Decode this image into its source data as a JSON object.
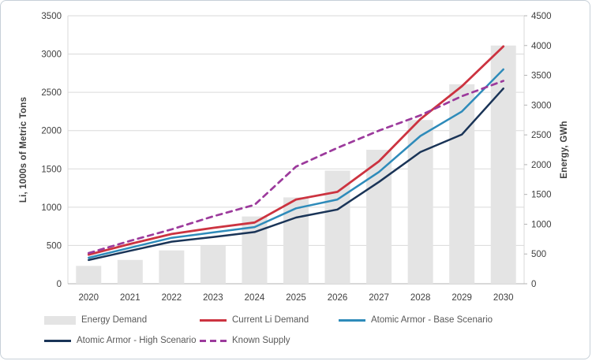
{
  "figure": {
    "background": "#ffffff",
    "border_color": "#c7d0d8",
    "grid_color": "#dadada",
    "axis_line_color": "#b3b3b3",
    "tick_text_color": "#404040",
    "legend_text_color": "#595959"
  },
  "chart_data": {
    "type": "combo-bar-line",
    "title": "",
    "categories": [
      "2020",
      "2021",
      "2022",
      "2023",
      "2024",
      "2025",
      "2026",
      "2027",
      "2028",
      "2029",
      "2030"
    ],
    "bar_series": {
      "name": "Energy Demand",
      "axis": "right",
      "color": "#e4e4e4",
      "values": [
        300,
        400,
        560,
        640,
        1130,
        1450,
        1900,
        2250,
        2750,
        3350,
        4000
      ]
    },
    "series": [
      {
        "name": "Current Li Demand",
        "axis": "left",
        "color": "#cc3340",
        "dashed": false,
        "width": 2.8,
        "values": [
          380,
          520,
          650,
          730,
          800,
          1100,
          1200,
          1600,
          2150,
          2580,
          3100
        ]
      },
      {
        "name": "Atomic Armor - Base Scenario",
        "axis": "left",
        "color": "#2e8bba",
        "dashed": false,
        "width": 2.5,
        "values": [
          340,
          470,
          600,
          670,
          740,
          985,
          1100,
          1460,
          1930,
          2250,
          2800
        ]
      },
      {
        "name": "Atomic Armor - High Scenario",
        "axis": "left",
        "color": "#1a3457",
        "dashed": false,
        "width": 2.5,
        "values": [
          310,
          430,
          550,
          610,
          675,
          865,
          970,
          1330,
          1720,
          1950,
          2550
        ]
      },
      {
        "name": "Known Supply",
        "axis": "left",
        "color": "#9c3a9c",
        "dashed": true,
        "width": 2.7,
        "values": [
          400,
          560,
          710,
          880,
          1030,
          1530,
          1775,
          2000,
          2200,
          2450,
          2650
        ]
      }
    ],
    "left_axis": {
      "label": "Li, 1000s of Metric Tons",
      "min": 0,
      "max": 3500,
      "step": 500
    },
    "right_axis": {
      "label": "Energy, GWh",
      "min": 0,
      "max": 4500,
      "step": 500
    },
    "grid": true,
    "legend_position": "bottom"
  },
  "legend": {
    "rows": [
      [
        {
          "label": "Energy Demand",
          "swatch": "bar",
          "color": "#e4e4e4"
        },
        {
          "label": "Current Li Demand",
          "swatch": "line",
          "color": "#cc3340"
        },
        {
          "label": "Atomic Armor - Base Scenario",
          "swatch": "line",
          "color": "#2e8bba"
        }
      ],
      [
        {
          "label": "Atomic Armor -  High Scenario",
          "swatch": "line",
          "color": "#1a3457"
        },
        {
          "label": "Known Supply",
          "swatch": "dash",
          "color": "#9c3a9c"
        }
      ]
    ]
  }
}
